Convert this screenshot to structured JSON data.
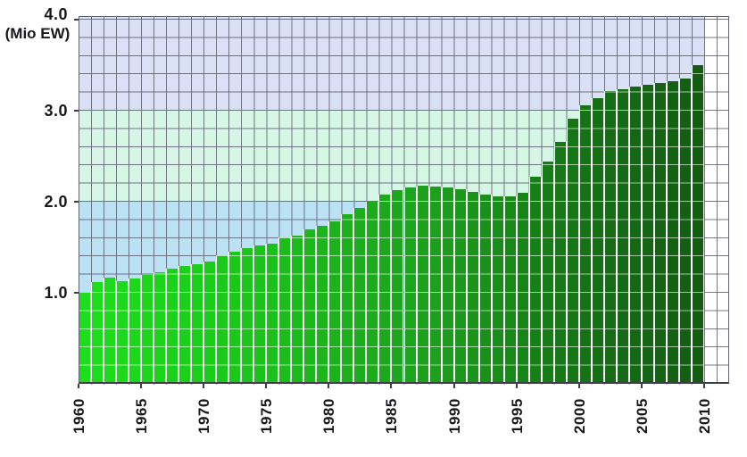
{
  "chart_data": {
    "type": "bar",
    "title": "",
    "unit_label": "(Mio EW)",
    "xlabel": "",
    "ylabel": "(Mio EW)",
    "ylim": [
      0,
      4.04
    ],
    "y_grid_step": 0.2,
    "y_tick_labels": [
      "1.0",
      "2.0",
      "3.0",
      "4.0"
    ],
    "y_tick_values": [
      1.0,
      2.0,
      3.0,
      4.0
    ],
    "x_tick_labels": [
      "1960",
      "1965",
      "1970",
      "1975",
      "1980",
      "1985",
      "1990",
      "1995",
      "2000",
      "2005",
      "2010"
    ],
    "x_tick_years": [
      1960,
      1965,
      1970,
      1975,
      1980,
      1985,
      1990,
      1995,
      2000,
      2005,
      2010
    ],
    "years": [
      1960,
      1961,
      1962,
      1963,
      1964,
      1965,
      1966,
      1967,
      1968,
      1969,
      1970,
      1971,
      1972,
      1973,
      1974,
      1975,
      1976,
      1977,
      1978,
      1979,
      1980,
      1981,
      1982,
      1983,
      1984,
      1985,
      1986,
      1987,
      1988,
      1989,
      1990,
      1991,
      1992,
      1993,
      1994,
      1995,
      1996,
      1997,
      1998,
      1999,
      2000,
      2001,
      2002,
      2003,
      2004,
      2005,
      2006,
      2007,
      2008,
      2009
    ],
    "values": [
      1.01,
      1.12,
      1.17,
      1.13,
      1.16,
      1.2,
      1.23,
      1.26,
      1.29,
      1.31,
      1.34,
      1.41,
      1.45,
      1.49,
      1.52,
      1.54,
      1.61,
      1.63,
      1.7,
      1.74,
      1.78,
      1.86,
      1.93,
      2.0,
      2.08,
      2.13,
      2.16,
      2.18,
      2.17,
      2.16,
      2.14,
      2.11,
      2.08,
      2.06,
      2.06,
      2.1,
      2.27,
      2.44,
      2.66,
      2.91,
      3.06,
      3.14,
      3.22,
      3.24,
      3.26,
      3.28,
      3.3,
      3.32,
      3.35,
      3.5
    ],
    "empty_trailing_columns": 2,
    "legend": "none",
    "grid": "on",
    "background_bands": [
      {
        "from": 0.0,
        "to": 2.0,
        "color": "#BBE1F5"
      },
      {
        "from": 2.0,
        "to": 3.0,
        "color": "#D6F6E6"
      },
      {
        "from": 3.0,
        "to": 4.04,
        "color": "#DAE0F5"
      }
    ],
    "bar_color_stops": [
      {
        "year": 1960,
        "color": "#1BDF1B"
      },
      {
        "year": 1970,
        "color": "#1ACD1A"
      },
      {
        "year": 1980,
        "color": "#1CB21C"
      },
      {
        "year": 1988,
        "color": "#1D9F1D"
      },
      {
        "year": 1996,
        "color": "#168016"
      },
      {
        "year": 2002,
        "color": "#156C15"
      },
      {
        "year": 2009,
        "color": "#135D13"
      }
    ]
  }
}
